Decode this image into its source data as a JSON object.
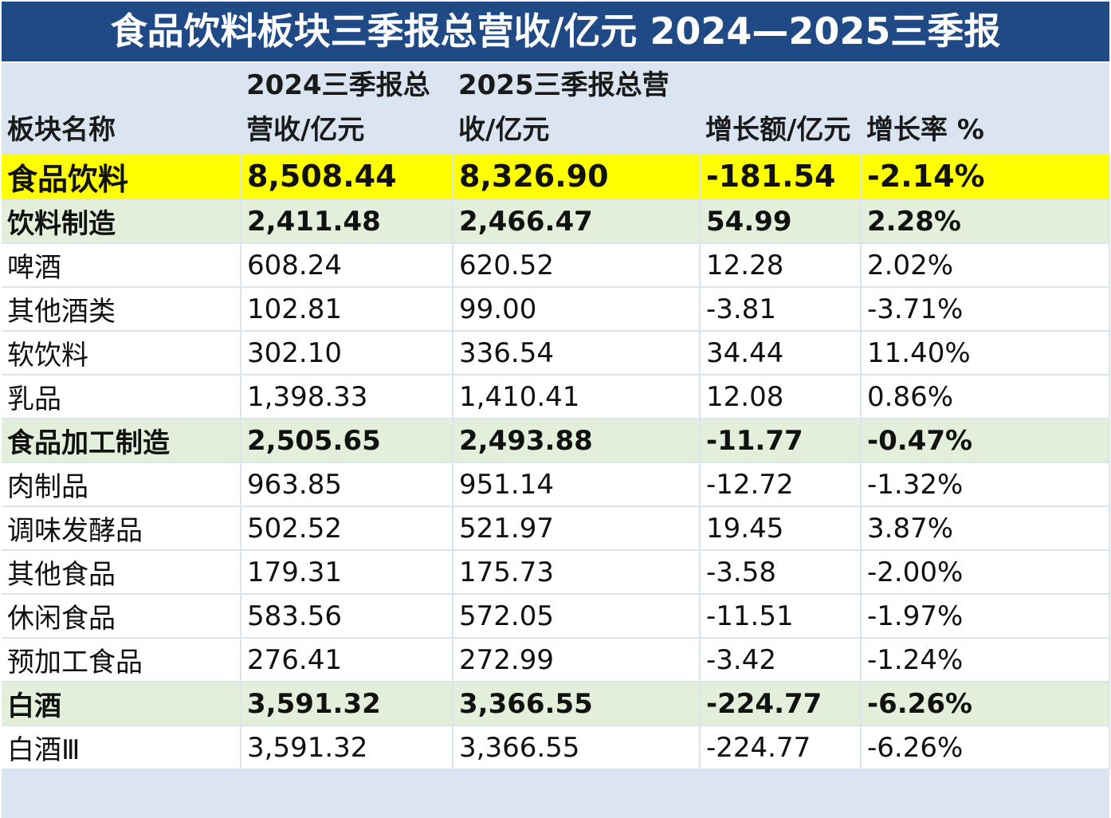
{
  "title": "食品饮料板块三季报总营收/亿元 2024—2025三季报",
  "colors": {
    "title_bg": "#1f4a86",
    "header_bg": "#dbe5f1",
    "total_row": "#ffff00",
    "group_row": "#e3efda",
    "detail_row": "#ffffff"
  },
  "chart_data": {
    "type": "table",
    "title": "食品饮料板块三季报总营收/亿元 2024—2025三季报",
    "columns": [
      "板块名称",
      "2024三季报总营收/亿元",
      "2025三季报总营收/亿元",
      "增长额/亿元",
      "增长率 %"
    ],
    "rows": [
      {
        "level": "total",
        "cells": [
          "食品饮料",
          "8,508.44",
          "8,326.90",
          "-181.54",
          "-2.14%"
        ]
      },
      {
        "level": "group",
        "cells": [
          "饮料制造",
          "2,411.48",
          "2,466.47",
          "54.99",
          "2.28%"
        ]
      },
      {
        "level": "detail",
        "cells": [
          "啤酒",
          "608.24",
          "620.52",
          "12.28",
          "2.02%"
        ]
      },
      {
        "level": "detail",
        "cells": [
          "其他酒类",
          "102.81",
          "99.00",
          "-3.81",
          "-3.71%"
        ]
      },
      {
        "level": "detail",
        "cells": [
          "软饮料",
          "302.10",
          "336.54",
          "34.44",
          "11.40%"
        ]
      },
      {
        "level": "detail",
        "cells": [
          "乳品",
          "1,398.33",
          "1,410.41",
          "12.08",
          "0.86%"
        ]
      },
      {
        "level": "group",
        "cells": [
          "食品加工制造",
          "2,505.65",
          "2,493.88",
          "-11.77",
          "-0.47%"
        ]
      },
      {
        "level": "detail",
        "cells": [
          "肉制品",
          "963.85",
          "951.14",
          "-12.72",
          "-1.32%"
        ]
      },
      {
        "level": "detail",
        "cells": [
          "调味发酵品",
          "502.52",
          "521.97",
          "19.45",
          "3.87%"
        ]
      },
      {
        "level": "detail",
        "cells": [
          "其他食品",
          "179.31",
          "175.73",
          "-3.58",
          "-2.00%"
        ]
      },
      {
        "level": "detail",
        "cells": [
          "休闲食品",
          "583.56",
          "572.05",
          "-11.51",
          "-1.97%"
        ]
      },
      {
        "level": "detail",
        "cells": [
          "预加工食品",
          "276.41",
          "272.99",
          "-3.42",
          "-1.24%"
        ]
      },
      {
        "level": "group",
        "cells": [
          "白酒",
          "3,591.32",
          "3,366.55",
          "-224.77",
          "-6.26%"
        ]
      },
      {
        "level": "detail",
        "cells": [
          "白酒Ⅲ",
          "3,591.32",
          "3,366.55",
          "-224.77",
          "-6.26%"
        ]
      }
    ]
  }
}
